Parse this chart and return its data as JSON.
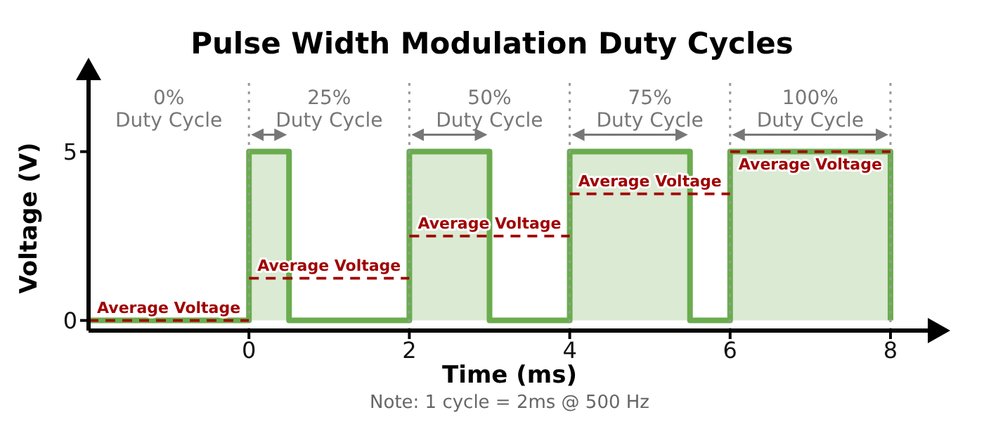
{
  "chart_data": {
    "type": "area",
    "title": "Pulse Width Modulation Duty Cycles",
    "xlabel": "Time (ms)",
    "ylabel": "Voltage (V)",
    "xlim": [
      -2,
      8.5
    ],
    "xticks": [
      0,
      2,
      4,
      6,
      8
    ],
    "ylim": [
      -0.3,
      7.2
    ],
    "yticks": [
      0,
      5
    ],
    "grid": false,
    "legend": false,
    "series": [
      {
        "color": "#6aac4e",
        "x": [
          -2,
          0,
          0,
          0.5,
          0.5,
          2,
          2,
          3,
          3,
          4,
          4,
          5.5,
          5.5,
          6,
          6,
          8,
          8
        ],
        "values": [
          0,
          0,
          5,
          5,
          0,
          0,
          5,
          5,
          0,
          0,
          5,
          5,
          0,
          0,
          5,
          5,
          0
        ]
      },
      {
        "type": "line",
        "color": "#a00000",
        "line_style": "dashed",
        "x": [
          -2,
          0
        ],
        "values": [
          0,
          0
        ]
      },
      {
        "type": "line",
        "color": "#a00000",
        "line_style": "dashed",
        "x": [
          0,
          2
        ],
        "values": [
          1.25,
          1.25
        ]
      },
      {
        "type": "line",
        "color": "#a00000",
        "line_style": "dashed",
        "x": [
          2,
          4
        ],
        "values": [
          2.5,
          2.5
        ]
      },
      {
        "type": "line",
        "color": "#a00000",
        "line_style": "dashed",
        "x": [
          4,
          6
        ],
        "values": [
          3.75,
          3.75
        ]
      },
      {
        "type": "line",
        "color": "#a00000",
        "line_style": "dashed",
        "x": [
          6,
          8
        ],
        "values": [
          5,
          5
        ]
      }
    ],
    "ref_lines": [
      {
        "axis": "x",
        "value": 0,
        "color": "#999999",
        "line_style": "dotted"
      },
      {
        "axis": "x",
        "value": 2,
        "color": "#999999",
        "line_style": "dotted"
      },
      {
        "axis": "x",
        "value": 4,
        "color": "#999999",
        "line_style": "dotted"
      },
      {
        "axis": "x",
        "value": 6,
        "color": "#999999",
        "line_style": "dotted"
      },
      {
        "axis": "x",
        "value": 8,
        "color": "#999999",
        "line_style": "dotted"
      }
    ],
    "annotations": [
      "0%",
      "Duty Cycle",
      "25%",
      "Duty Cycle",
      "50%",
      "Duty Cycle",
      "75%",
      "Duty Cycle",
      "100%",
      "Duty Cycle",
      {
        "text": "Average Voltage",
        "x": -1,
        "y": 0
      },
      {
        "text": "Average Voltage",
        "x": 1,
        "y": 1.25
      },
      {
        "text": "Average Voltage",
        "x": 3,
        "y": 2.5
      },
      {
        "text": "Average Voltage",
        "x": 5,
        "y": 3.75
      },
      {
        "text": "Average Voltage",
        "x": 7,
        "y": 5
      },
      "Note: 1 cycle = 2ms @ 500 Hz"
    ]
  }
}
